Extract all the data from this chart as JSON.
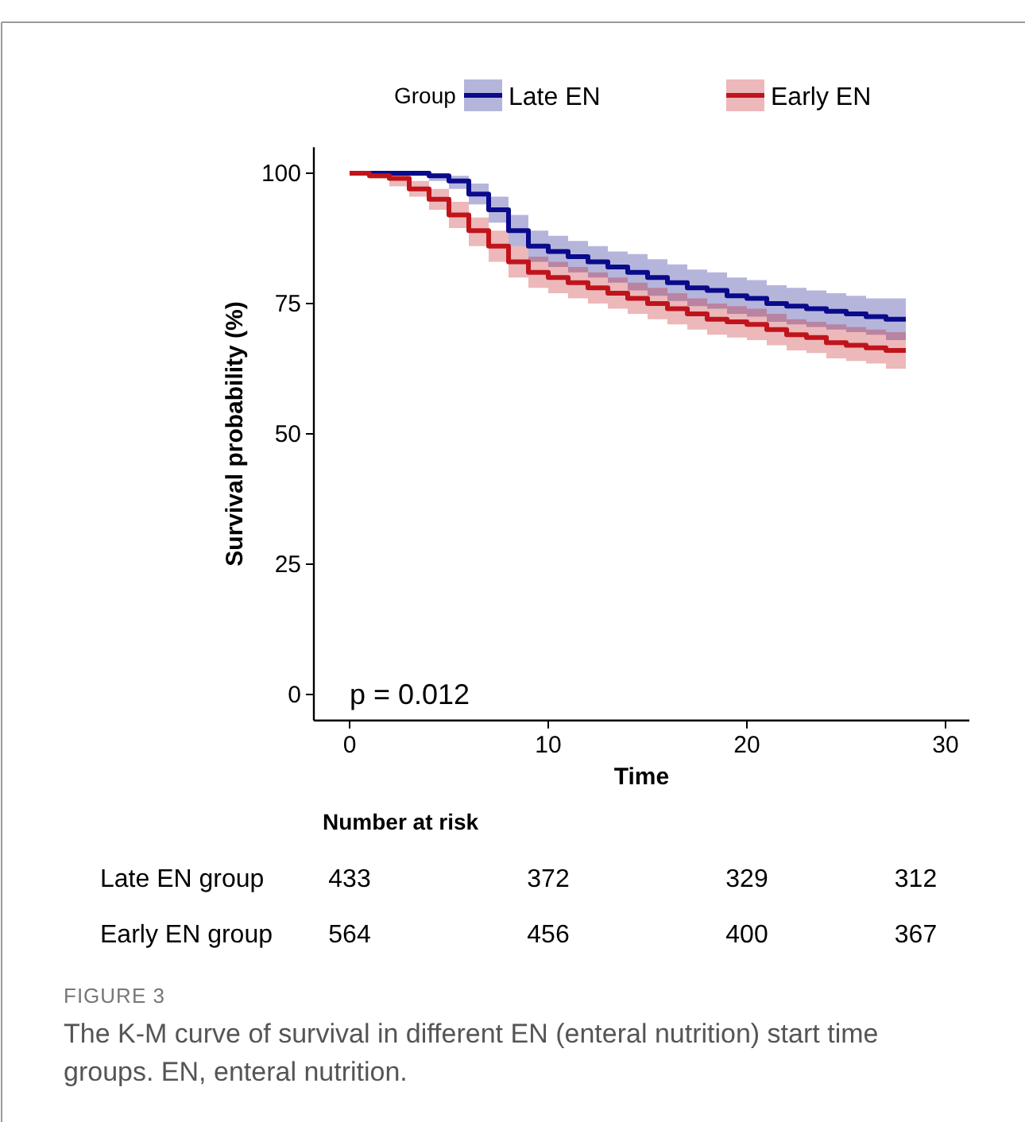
{
  "chart_data": {
    "type": "step",
    "xlabel": "Time",
    "ylabel": "Survival probability (%)",
    "legend_title": "Group",
    "legend": "top",
    "grid": false,
    "x": [
      0,
      1,
      2,
      3,
      4,
      5,
      6,
      7,
      8,
      9,
      10,
      11,
      12,
      13,
      14,
      15,
      16,
      17,
      18,
      19,
      20,
      21,
      22,
      23,
      24,
      25,
      26,
      27,
      28
    ],
    "xlim": [
      -1.8,
      31.2
    ],
    "ylim": [
      -5,
      105
    ],
    "xticks": [
      0,
      10,
      20,
      30
    ],
    "yticks": [
      0,
      25,
      50,
      75,
      100
    ],
    "series": [
      {
        "name": "Late EN",
        "color": "#0a0a8c",
        "values": [
          100,
          100,
          100,
          100,
          99.5,
          98.5,
          96,
          93,
          89,
          86,
          85,
          84,
          83,
          82,
          81,
          80,
          79,
          78,
          77.5,
          76.5,
          76,
          75,
          74.5,
          74,
          73.5,
          73,
          72.5,
          72,
          72
        ],
        "upper": [
          100,
          100,
          100,
          100,
          100,
          99.5,
          98,
          95.5,
          92,
          89,
          88,
          87,
          86,
          85,
          84.5,
          83.5,
          82.5,
          81.5,
          81,
          80,
          79.5,
          78.5,
          78,
          77.5,
          77,
          76.5,
          76,
          76,
          76
        ],
        "lower": [
          100,
          100,
          100,
          99.5,
          98.5,
          97,
          94,
          90.5,
          86,
          83,
          82,
          81,
          80,
          79,
          77.5,
          76.5,
          75.5,
          74.5,
          74,
          73,
          72.5,
          71.5,
          71,
          70.5,
          70,
          69.5,
          69,
          68,
          68
        ]
      },
      {
        "name": "Early EN",
        "color": "#c0141c",
        "values": [
          100,
          99.5,
          99,
          97,
          95,
          92,
          89,
          86,
          83,
          81,
          80,
          79,
          78,
          77,
          76,
          75,
          74,
          73,
          72,
          71.5,
          71,
          70,
          69,
          68.5,
          67.5,
          67,
          66.5,
          66,
          66
        ],
        "upper": [
          100,
          100,
          100,
          98.5,
          97,
          94.5,
          91.5,
          89,
          86,
          84,
          83,
          82,
          81,
          80,
          79,
          78,
          77,
          76,
          75,
          74.5,
          74,
          73,
          72,
          71.5,
          71,
          70.5,
          70,
          69.5,
          69.5
        ],
        "lower": [
          100,
          99,
          97.5,
          95.5,
          93,
          89.5,
          86,
          83,
          80,
          78,
          77,
          76,
          75,
          74,
          73,
          72,
          71,
          70,
          69,
          68.5,
          68,
          67,
          66,
          65.5,
          64.5,
          64,
          63.5,
          62.5,
          62.5
        ]
      }
    ],
    "annotations": [
      "p = 0.012",
      "Number at risk",
      "Late EN group",
      "433",
      "372",
      "329",
      "312",
      "Early EN group",
      "564",
      "456",
      "400",
      "367",
      "FIGURE 3",
      "The K-M curve of survival in different EN (enteral nutrition) start time groups. EN, enteral nutrition."
    ]
  }
}
